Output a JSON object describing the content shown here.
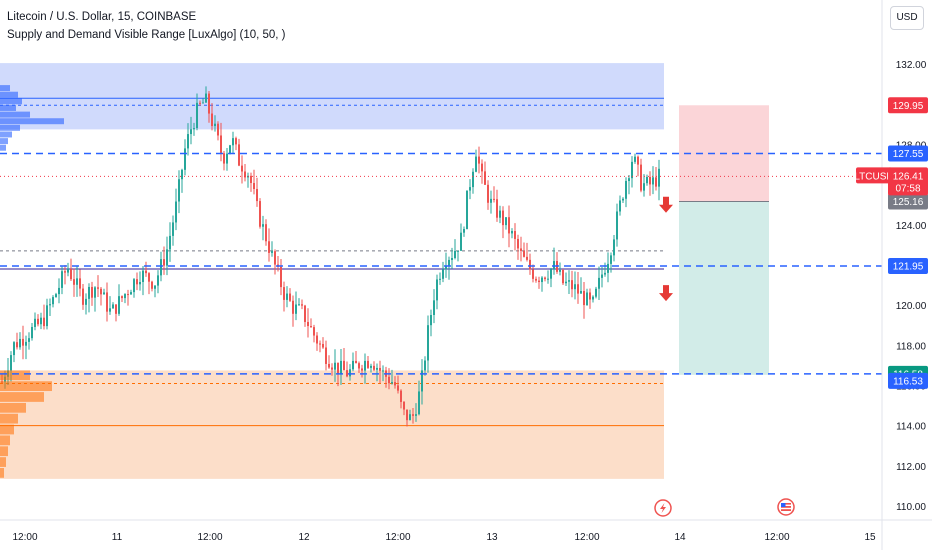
{
  "header": {
    "symbol_line": "Litecoin / U.S. Dollar, 15, COINBASE",
    "indicator_line": "Supply and Demand Visible Range [LuxAlgo] (10, 50, )"
  },
  "currency_button": "USD",
  "colors": {
    "up": "#26a69a",
    "down": "#ef5350",
    "blue_line": "#2962ff",
    "supply_zone": "#c8d3fb",
    "demand_zone": "#fcd8c0",
    "stop_zone": "#fbd5d8",
    "target_zone": "#d2ece8",
    "arrow": "#e53935"
  },
  "chart_data": {
    "type": "candlestick",
    "symbol": "LTCUSD",
    "ylim": [
      109.8,
      133.2
    ],
    "y_ticks": [
      110,
      112,
      114,
      116,
      118,
      120,
      122,
      124,
      126,
      128,
      130,
      132
    ],
    "y_tick_labels": [
      "110.00",
      "112.00",
      "114.00",
      "116.00",
      "118.00",
      "120.00",
      "122.00",
      "124.00",
      "126.00",
      "128.00",
      "130.00",
      "132.00"
    ],
    "x_tick_labels": [
      "12:00",
      "11",
      "12:00",
      "12",
      "12:00",
      "13",
      "12:00",
      "14",
      "12:00",
      "15"
    ],
    "price_path": [
      [
        0,
        116.2
      ],
      [
        8,
        118.0
      ],
      [
        18,
        118.6
      ],
      [
        28,
        119.2
      ],
      [
        36,
        120.4
      ],
      [
        45,
        121.9
      ],
      [
        55,
        120.4
      ],
      [
        65,
        121.0
      ],
      [
        75,
        119.6
      ],
      [
        85,
        120.6
      ],
      [
        95,
        121.6
      ],
      [
        105,
        121.1
      ],
      [
        113,
        122.6
      ],
      [
        120,
        125.0
      ],
      [
        126,
        127.8
      ],
      [
        130,
        128.8
      ],
      [
        135,
        129.8
      ],
      [
        140,
        130.2
      ],
      [
        146,
        128.8
      ],
      [
        152,
        127.3
      ],
      [
        158,
        128.3
      ],
      [
        163,
        127.2
      ],
      [
        170,
        126.5
      ],
      [
        176,
        124.6
      ],
      [
        182,
        123.3
      ],
      [
        188,
        121.9
      ],
      [
        194,
        120.6
      ],
      [
        200,
        119.9
      ],
      [
        207,
        119.6
      ],
      [
        214,
        118.6
      ],
      [
        222,
        117.6
      ],
      [
        230,
        116.9
      ],
      [
        238,
        116.6
      ],
      [
        246,
        117.1
      ],
      [
        254,
        117.3
      ],
      [
        262,
        116.6
      ],
      [
        270,
        116.1
      ],
      [
        276,
        114.6
      ],
      [
        282,
        114.3
      ],
      [
        288,
        115.8
      ],
      [
        293,
        118.6
      ],
      [
        298,
        120.9
      ],
      [
        304,
        122.3
      ],
      [
        310,
        122.6
      ],
      [
        316,
        123.3
      ],
      [
        320,
        125.3
      ],
      [
        326,
        127.8
      ],
      [
        330,
        126.3
      ],
      [
        336,
        125.1
      ],
      [
        343,
        124.4
      ],
      [
        350,
        123.6
      ],
      [
        356,
        122.6
      ],
      [
        362,
        121.9
      ],
      [
        368,
        121.4
      ],
      [
        374,
        121.6
      ],
      [
        380,
        121.9
      ],
      [
        386,
        121.1
      ],
      [
        393,
        120.9
      ],
      [
        400,
        120.4
      ],
      [
        406,
        119.9
      ],
      [
        413,
        121.6
      ],
      [
        418,
        122.6
      ],
      [
        424,
        124.6
      ],
      [
        429,
        126.2
      ],
      [
        434,
        127.4
      ],
      [
        440,
        126.0
      ],
      [
        446,
        126.0
      ],
      [
        452,
        126.4
      ]
    ],
    "reference_lines": [
      {
        "id": "ref1",
        "value": 127.55,
        "label": "127.55",
        "style": "dashed",
        "color": "#2962ff"
      },
      {
        "id": "ref2",
        "value": 121.95,
        "label": "121.95",
        "style": "dashed",
        "color": "#2962ff"
      },
      {
        "id": "ref3",
        "value": 116.58,
        "label": "116.58",
        "style": "dashed",
        "color": "#2962ff"
      }
    ],
    "zones": [
      {
        "id": "supply",
        "top": 132.05,
        "bottom": 128.75,
        "mid": 129.95,
        "avg": 130.3,
        "color": "#c8d3fb",
        "line": "#2962ff"
      },
      {
        "id": "demand",
        "top": 116.75,
        "bottom": 111.35,
        "mid": 116.1,
        "avg": 114.0,
        "color": "#fcd8c0",
        "line": "#ff6d00"
      }
    ],
    "inner_levels": [
      {
        "value": 122.7,
        "color": "#787b86",
        "style": "dotted"
      },
      {
        "value": 121.8,
        "color": "#311b92",
        "style": "solid"
      }
    ],
    "position": {
      "entry": 125.16,
      "stop": 129.95,
      "target": 116.53,
      "entry_label": "125.16",
      "stop_label": "129.95",
      "target_label": "116.53"
    },
    "last_price": {
      "value": 126.41,
      "label": "126.41",
      "countdown": "07:58"
    },
    "arrows": [
      124.9,
      120.5
    ]
  }
}
